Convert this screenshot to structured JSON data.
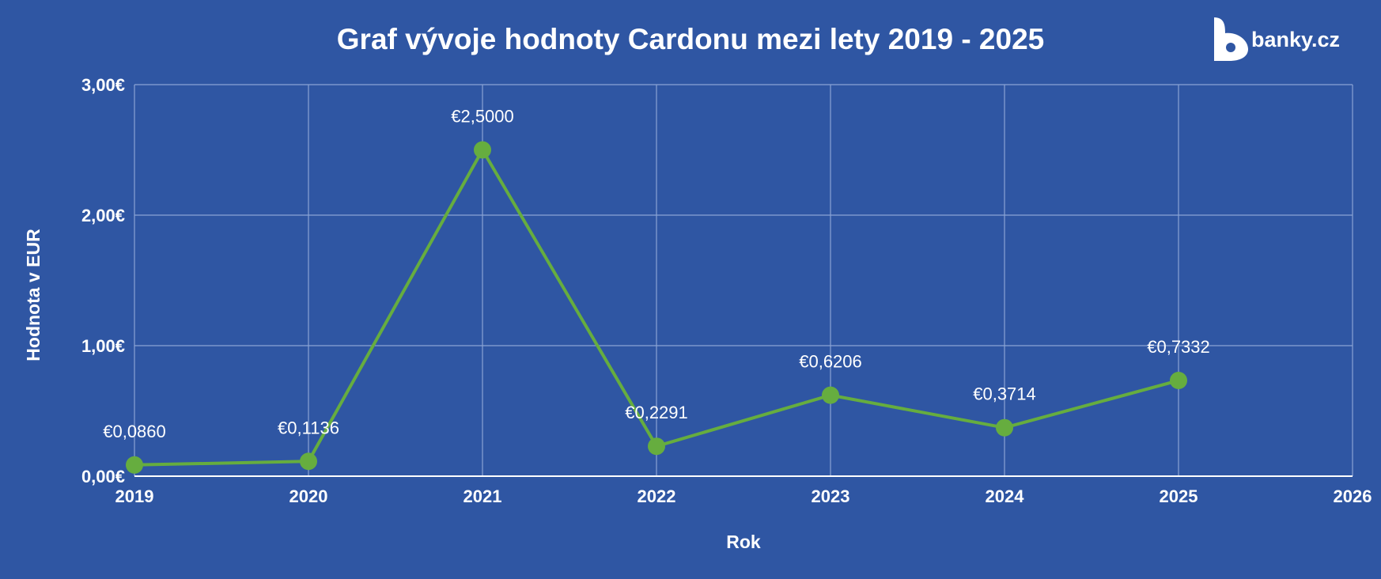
{
  "brand": {
    "name": "banky.cz"
  },
  "colors": {
    "background": "#2f56a3",
    "series": "#66ad3f",
    "grid": "#8aa3d4",
    "text": "#ffffff"
  },
  "chart_data": {
    "type": "line",
    "title": "Graf vývoje hodnoty Cardonu mezi lety 2019 - 2025",
    "xlabel": "Rok",
    "ylabel": "Hodnota v EUR",
    "x": [
      2019,
      2020,
      2021,
      2022,
      2023,
      2024,
      2025
    ],
    "xlim": [
      2019,
      2026
    ],
    "x_ticks": [
      "2019",
      "2020",
      "2021",
      "2022",
      "2023",
      "2024",
      "2025",
      "2026"
    ],
    "ylim": [
      0,
      3
    ],
    "y_ticks": [
      {
        "value": 0,
        "label": "0,00€"
      },
      {
        "value": 1,
        "label": "1,00€"
      },
      {
        "value": 2,
        "label": "2,00€"
      },
      {
        "value": 3,
        "label": "3,00€"
      }
    ],
    "grid": true,
    "series": [
      {
        "values": [
          0.086,
          0.1136,
          2.5,
          0.2291,
          0.6206,
          0.3714,
          0.7332
        ],
        "labels": [
          "€0,0860",
          "€0,1136",
          "€2,5000",
          "€0,2291",
          "€0,6206",
          "€0,3714",
          "€0,7332"
        ],
        "color": "#66ad3f",
        "marker": "circle"
      }
    ]
  }
}
